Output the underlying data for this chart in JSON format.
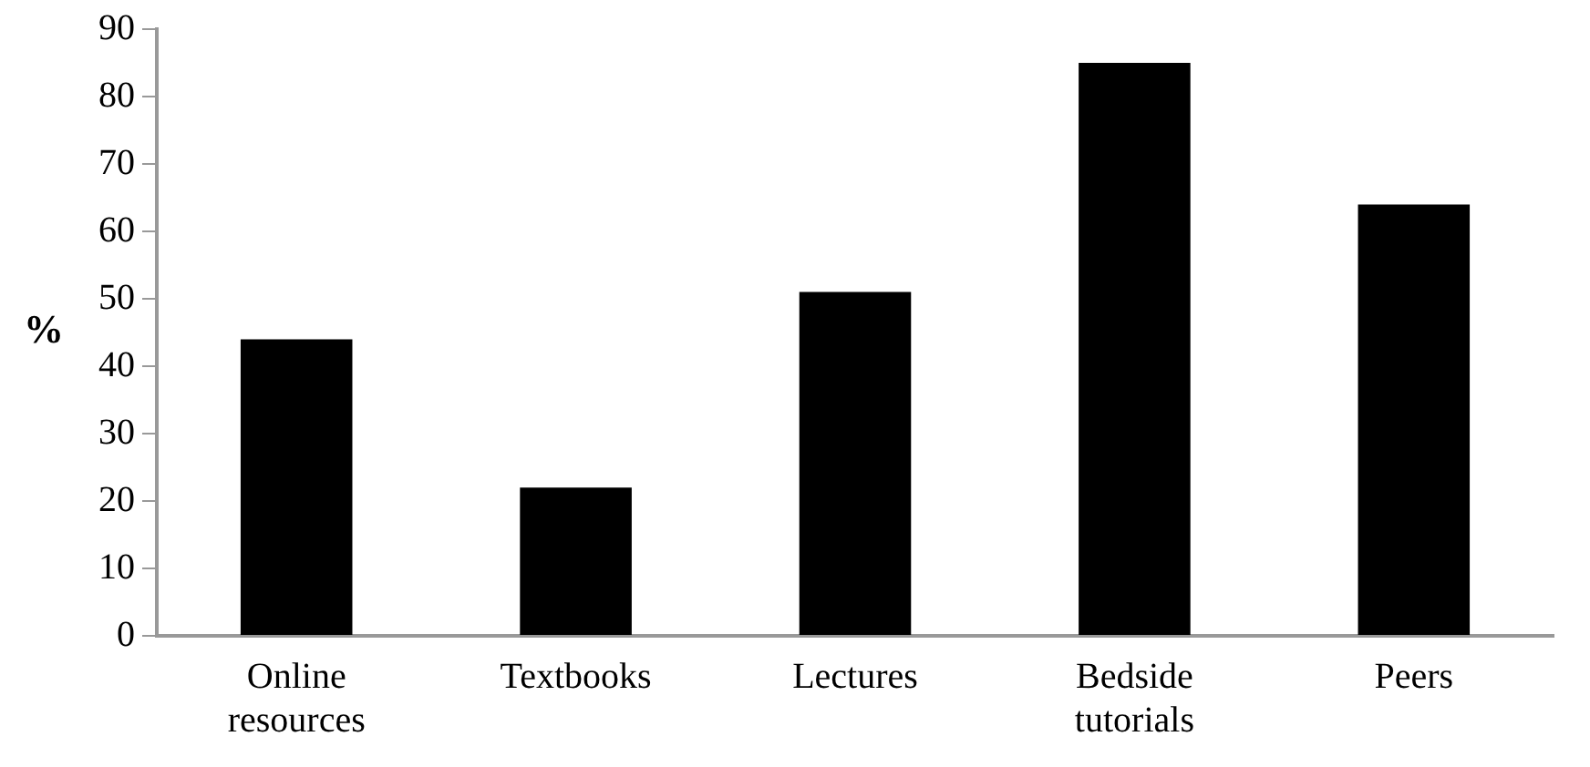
{
  "chart_data": {
    "type": "bar",
    "ylabel": "%",
    "categories": [
      "Online resources",
      "Textbooks",
      "Lectures",
      "Bedside tutorials",
      "Peers"
    ],
    "values": [
      44,
      22,
      51,
      85,
      64
    ],
    "color": "#000000",
    "ylim": [
      0,
      90
    ],
    "yticks": [
      0,
      10,
      20,
      30,
      40,
      50,
      60,
      70,
      80,
      90
    ],
    "grid": false,
    "legend": false
  }
}
